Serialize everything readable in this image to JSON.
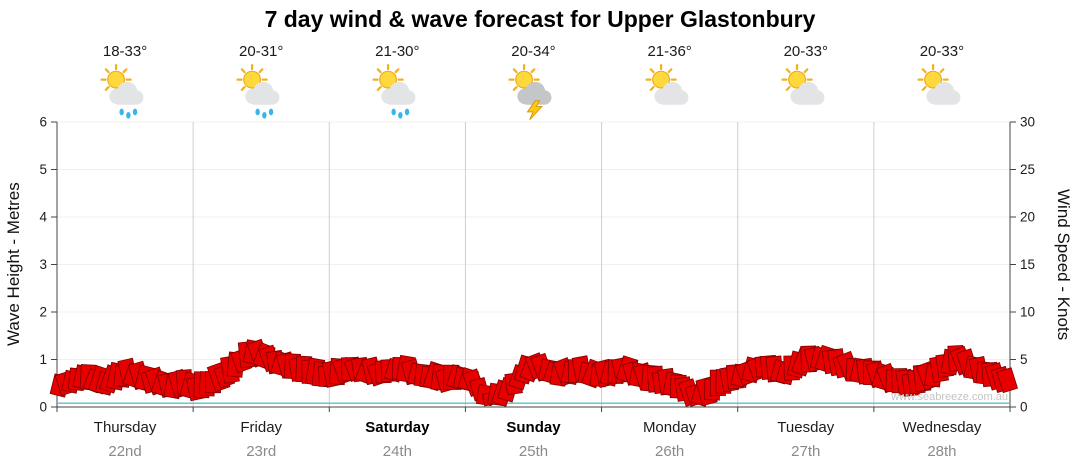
{
  "title": "7 day wind & wave forecast for Upper Glastonbury",
  "watermark": "www.seabreeze.com.au",
  "axes": {
    "left_label": "Wave Height - Metres",
    "right_label": "Wind Speed - Knots",
    "left_ticks": [
      0,
      1,
      2,
      3,
      4,
      5,
      6
    ],
    "right_ticks": [
      0,
      5,
      10,
      15,
      20,
      25,
      30
    ]
  },
  "colors": {
    "wind_flag": "#e60000",
    "wind_flag_outline": "#7e0000",
    "wave_line": "#58c0cc",
    "grid_day_line": "#cfcfcf",
    "grid_h_line": "#f0f0f0",
    "axis": "#444444",
    "sun": "#ffd93b",
    "cloud": "#e3e4e6",
    "storm_cloud": "#c4c6c9",
    "rain_drop": "#3ab5e8",
    "lightning": "#ffc816"
  },
  "days": [
    {
      "name": "Thursday",
      "date": "22nd",
      "temp": "18-33°",
      "icon": "sun-cloud-rain",
      "bold": false
    },
    {
      "name": "Friday",
      "date": "23rd",
      "temp": "20-31°",
      "icon": "sun-cloud-rain",
      "bold": false
    },
    {
      "name": "Saturday",
      "date": "24th",
      "temp": "21-30°",
      "icon": "sun-cloud-rain",
      "bold": true
    },
    {
      "name": "Sunday",
      "date": "25th",
      "temp": "20-34°",
      "icon": "sun-cloud-lightning",
      "bold": true
    },
    {
      "name": "Monday",
      "date": "26th",
      "temp": "21-36°",
      "icon": "sun-cloud",
      "bold": false
    },
    {
      "name": "Tuesday",
      "date": "27th",
      "temp": "20-33°",
      "icon": "sun-cloud",
      "bold": false
    },
    {
      "name": "Wednesday",
      "date": "28th",
      "temp": "20-33°",
      "icon": "sun-cloud",
      "bold": false
    }
  ],
  "chart_data": {
    "type": "area",
    "title": "7 day wind & wave forecast for Upper Glastonbury",
    "xlabel": "",
    "ylabel_left": "Wave Height - Metres",
    "ylabel_right": "Wind Speed - Knots",
    "ylim_left_metres": [
      0,
      6
    ],
    "ylim_right_knots": [
      0,
      30
    ],
    "grid": {
      "vertical_day_separators": true,
      "horizontal_gridlines": "faint"
    },
    "legend_position": "none",
    "x_categories_days": [
      "Thursday 22nd",
      "Friday 23rd",
      "Saturday 24th",
      "Sunday 25th",
      "Monday 26th",
      "Tuesday 27th",
      "Wednesday 28th"
    ],
    "points_per_day": 12,
    "series": [
      {
        "name": "Wind Speed",
        "unit": "knots",
        "style": "red jagged flag band, band thickness ~2.4 knots",
        "color": "#e60000",
        "values": [
          3.6,
          4.0,
          4.4,
          4.1,
          3.8,
          4.3,
          4.8,
          4.4,
          4.0,
          3.7,
          3.4,
          3.6,
          3.2,
          3.6,
          4.2,
          5.0,
          6.2,
          7.0,
          6.6,
          6.0,
          5.6,
          5.2,
          4.9,
          4.6,
          4.6,
          5.0,
          5.3,
          5.0,
          4.8,
          5.1,
          5.3,
          4.9,
          4.6,
          4.3,
          4.1,
          4.4,
          4.2,
          3.2,
          1.8,
          2.4,
          3.8,
          5.0,
          5.5,
          5.1,
          4.7,
          4.9,
          5.1,
          4.6,
          4.6,
          4.9,
          5.1,
          4.6,
          4.1,
          3.9,
          3.6,
          3.1,
          2.2,
          2.7,
          3.6,
          4.1,
          4.6,
          5.1,
          5.6,
          5.1,
          4.9,
          5.6,
          6.1,
          6.4,
          6.0,
          5.6,
          5.1,
          4.9,
          4.6,
          4.1,
          3.9,
          3.6,
          4.1,
          4.6,
          5.6,
          6.2,
          5.7,
          5.1,
          4.6,
          4.1
        ]
      },
      {
        "name": "Wave Height",
        "unit": "metres",
        "style": "flat thin line near zero",
        "color": "#58c0cc",
        "flat_value": 0.08
      }
    ]
  }
}
